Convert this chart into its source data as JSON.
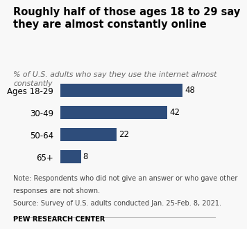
{
  "title": "Roughly half of those ages 18 to 29 say\nthey are almost constantly online",
  "subtitle": "% of U.S. adults who say they use the internet almost\nconstantly",
  "categories": [
    "Ages 18-29",
    "30-49",
    "50-64",
    "65+"
  ],
  "values": [
    48,
    42,
    22,
    8
  ],
  "bar_color": "#2e4d7b",
  "xlim": [
    0,
    55
  ],
  "note_line1": "Note: Respondents who did not give an answer or who gave other",
  "note_line2": "responses are not shown.",
  "note_line3": "Source: Survey of U.S. adults conducted Jan. 25-Feb. 8, 2021.",
  "footer": "PEW RESEARCH CENTER",
  "title_fontsize": 10.5,
  "subtitle_fontsize": 7.8,
  "label_fontsize": 8.5,
  "value_fontsize": 8.5,
  "note_fontsize": 7.0,
  "footer_fontsize": 7.0,
  "background_color": "#f8f8f8"
}
